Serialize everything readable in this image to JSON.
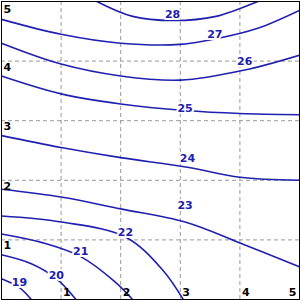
{
  "chart_data": {
    "type": "contour",
    "color": "#2020b0",
    "grid": true,
    "xlim": [
      0,
      5
    ],
    "ylim": [
      0,
      5
    ],
    "xticks": [
      1,
      2,
      3,
      4,
      5
    ],
    "yticks": [
      1,
      2,
      3,
      4,
      5
    ],
    "contours": [
      {
        "level": 19,
        "points": [
          [
            0,
            0.35
          ],
          [
            0.3,
            0.2
          ],
          [
            0.5,
            0
          ]
        ],
        "label_at": [
          0.3,
          0.28
        ]
      },
      {
        "level": 20,
        "points": [
          [
            0,
            0.75
          ],
          [
            0.5,
            0.6
          ],
          [
            0.92,
            0.35
          ],
          [
            1.25,
            0
          ]
        ],
        "label_at": [
          0.92,
          0.4
        ]
      },
      {
        "level": 21,
        "points": [
          [
            0,
            1.1
          ],
          [
            0.7,
            0.95
          ],
          [
            1.33,
            0.72
          ],
          [
            1.9,
            0.3
          ],
          [
            2.2,
            0
          ]
        ],
        "label_at": [
          1.33,
          0.8
        ]
      },
      {
        "level": 22,
        "points": [
          [
            0,
            1.4
          ],
          [
            1,
            1.3
          ],
          [
            2.08,
            1.05
          ],
          [
            2.7,
            0.5
          ],
          [
            3.05,
            0
          ]
        ],
        "label_at": [
          2.08,
          1.12
        ]
      },
      {
        "level": 23,
        "points": [
          [
            0,
            1.85
          ],
          [
            1,
            1.72
          ],
          [
            2,
            1.52
          ],
          [
            3.08,
            1.3
          ],
          [
            4,
            0.95
          ],
          [
            5,
            0.55
          ]
        ],
        "label_at": [
          3.08,
          1.58
        ]
      },
      {
        "level": 24,
        "points": [
          [
            0,
            2.75
          ],
          [
            1,
            2.55
          ],
          [
            2,
            2.38
          ],
          [
            3.12,
            2.22
          ],
          [
            4,
            2.05
          ],
          [
            5,
            2.0
          ]
        ],
        "label_at": [
          3.12,
          2.37
        ]
      },
      {
        "level": 25,
        "points": [
          [
            0,
            3.75
          ],
          [
            1,
            3.45
          ],
          [
            2,
            3.28
          ],
          [
            3.08,
            3.17
          ],
          [
            4,
            3.12
          ],
          [
            5,
            3.1
          ]
        ],
        "label_at": [
          3.08,
          3.2
        ]
      },
      {
        "level": 26,
        "points": [
          [
            0,
            4.3
          ],
          [
            1,
            3.95
          ],
          [
            2,
            3.75
          ],
          [
            3,
            3.68
          ],
          [
            4.08,
            3.85
          ],
          [
            5,
            4.1
          ]
        ],
        "label_at": [
          4.08,
          4.0
        ]
      },
      {
        "level": 27,
        "points": [
          [
            0,
            4.7
          ],
          [
            1,
            4.45
          ],
          [
            2,
            4.3
          ],
          [
            3,
            4.28
          ],
          [
            3.58,
            4.37
          ],
          [
            4.3,
            4.55
          ],
          [
            5,
            4.85
          ]
        ],
        "label_at": [
          3.58,
          4.45
        ]
      },
      {
        "level": 28,
        "points": [
          [
            1.6,
            5
          ],
          [
            2.2,
            4.75
          ],
          [
            2.87,
            4.68
          ],
          [
            3.6,
            4.75
          ],
          [
            4.3,
            5
          ]
        ],
        "label_at": [
          2.87,
          4.78
        ]
      }
    ]
  }
}
